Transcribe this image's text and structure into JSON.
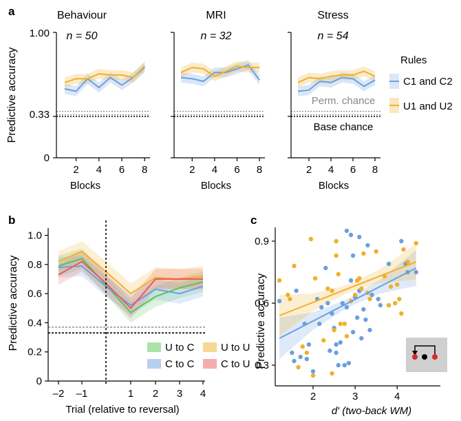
{
  "panel_a": {
    "letter": "a",
    "ylabel": "Predictive accuracy",
    "xlabel": "Blocks",
    "yticks": [
      "1.00",
      "0.33",
      "0"
    ],
    "xticks": [
      "2",
      "4",
      "6",
      "8"
    ],
    "perm_chance_label": "Perm. chance",
    "base_chance_label": "Base chance",
    "legend_title": "Rules",
    "legend_c": "C1 and C2",
    "legend_u": "U1 and U2",
    "subplots": [
      {
        "title": "Behaviour",
        "n": "n = 50"
      },
      {
        "title": "MRI",
        "n": "n = 32"
      },
      {
        "title": "Stress",
        "n": "n = 54"
      }
    ]
  },
  "panel_b": {
    "letter": "b",
    "ylabel": "Predictive accuracy",
    "xlabel": "Trial (relative to reversal)",
    "yticks": [
      "1.0",
      "0.8",
      "0.6",
      "0.4",
      "0.2",
      "0"
    ],
    "xticks": [
      "–2",
      "–1",
      "1",
      "2",
      "3",
      "4"
    ],
    "legend": [
      "U to C",
      "U to U",
      "C to C",
      "C to U"
    ]
  },
  "panel_c": {
    "letter": "c",
    "ylabel": "Predictive accuracy",
    "xlabel": "d′ (two-back WM)",
    "yticks": [
      "0.9",
      "0.6",
      "0.3"
    ],
    "xticks": [
      "2",
      "3",
      "4"
    ]
  },
  "colors": {
    "blue": "#6b9fe0",
    "orange": "#f0b02a",
    "green": "#59c451",
    "red": "#ec5a5a"
  },
  "chart_data": [
    {
      "type": "line",
      "subplot": "Behaviour",
      "x": [
        1,
        2,
        3,
        4,
        5,
        6,
        7,
        8
      ],
      "ylim": [
        0,
        1.0
      ],
      "series": [
        {
          "name": "C1 and C2",
          "values": [
            0.55,
            0.53,
            0.63,
            0.56,
            0.64,
            0.58,
            0.64,
            0.72
          ]
        },
        {
          "name": "U1 and U2",
          "values": [
            0.6,
            0.63,
            0.63,
            0.67,
            0.66,
            0.66,
            0.64,
            0.73
          ]
        }
      ],
      "reference_lines": {
        "Perm. chance": 0.37,
        "Base chance": 0.33
      }
    },
    {
      "type": "line",
      "subplot": "MRI",
      "x": [
        1,
        2,
        3,
        4,
        5,
        6,
        7,
        8
      ],
      "ylim": [
        0,
        1.0
      ],
      "series": [
        {
          "name": "C1 and C2",
          "values": [
            0.64,
            0.63,
            0.61,
            0.68,
            0.68,
            0.71,
            0.74,
            0.62
          ]
        },
        {
          "name": "U1 and U2",
          "values": [
            0.68,
            0.72,
            0.71,
            0.65,
            0.69,
            0.73,
            0.72,
            0.72
          ]
        }
      ],
      "reference_lines": {
        "Perm. chance": 0.37,
        "Base chance": 0.33
      }
    },
    {
      "type": "line",
      "subplot": "Stress",
      "x": [
        1,
        2,
        3,
        4,
        5,
        6,
        7,
        8
      ],
      "ylim": [
        0,
        1.0
      ],
      "series": [
        {
          "name": "C1 and C2",
          "values": [
            0.53,
            0.54,
            0.61,
            0.6,
            0.64,
            0.63,
            0.57,
            0.62
          ]
        },
        {
          "name": "U1 and U2",
          "values": [
            0.6,
            0.64,
            0.63,
            0.65,
            0.66,
            0.66,
            0.69,
            0.65
          ]
        }
      ],
      "reference_lines": {
        "Perm. chance": 0.37,
        "Base chance": 0.33
      }
    },
    {
      "type": "line",
      "panel": "b",
      "x": [
        -2,
        -1,
        0,
        1,
        2,
        3,
        4
      ],
      "ylim": [
        0,
        1.05
      ],
      "series": [
        {
          "name": "U to C",
          "values": [
            0.79,
            0.84,
            0.66,
            0.47,
            0.58,
            0.64,
            0.68
          ]
        },
        {
          "name": "U to U",
          "values": [
            0.82,
            0.89,
            0.75,
            0.6,
            0.71,
            0.7,
            0.72
          ]
        },
        {
          "name": "C to C",
          "values": [
            0.78,
            0.79,
            0.65,
            0.52,
            0.63,
            0.6,
            0.65
          ]
        },
        {
          "name": "C to U",
          "values": [
            0.73,
            0.82,
            0.67,
            0.5,
            0.7,
            0.7,
            0.7
          ]
        }
      ],
      "reference_lines": [
        0.37,
        0.33
      ],
      "reversal_x": 0
    },
    {
      "type": "scatter",
      "panel": "c",
      "xlim": [
        1.1,
        4.6
      ],
      "ylim": [
        0.2,
        1.0
      ],
      "series": [
        {
          "name": "blue",
          "points": [
            [
              1.2,
              0.61
            ],
            [
              1.5,
              0.36
            ],
            [
              1.55,
              0.32
            ],
            [
              1.6,
              0.66
            ],
            [
              1.7,
              0.34
            ],
            [
              1.8,
              0.5
            ],
            [
              1.85,
              0.33
            ],
            [
              1.9,
              0.4
            ],
            [
              2.0,
              0.27
            ],
            [
              2.1,
              0.62
            ],
            [
              2.15,
              0.5
            ],
            [
              2.2,
              0.58
            ],
            [
              2.3,
              0.77
            ],
            [
              2.35,
              0.6
            ],
            [
              2.4,
              0.37
            ],
            [
              2.45,
              0.55
            ],
            [
              2.5,
              0.48
            ],
            [
              2.55,
              0.36
            ],
            [
              2.55,
              0.4
            ],
            [
              2.6,
              0.3
            ],
            [
              2.65,
              0.41
            ],
            [
              2.7,
              0.6
            ],
            [
              2.75,
              0.3
            ],
            [
              2.8,
              0.95
            ],
            [
              2.8,
              0.58
            ],
            [
              2.85,
              0.31
            ],
            [
              2.9,
              0.93
            ],
            [
              2.9,
              0.71
            ],
            [
              2.95,
              0.83
            ],
            [
              2.95,
              0.46
            ],
            [
              3.0,
              0.63
            ],
            [
              3.05,
              0.53
            ],
            [
              3.1,
              0.92
            ],
            [
              3.1,
              0.66
            ],
            [
              3.15,
              0.43
            ],
            [
              3.2,
              0.57
            ],
            [
              3.25,
              0.52
            ],
            [
              3.3,
              0.88
            ],
            [
              3.35,
              0.47
            ],
            [
              3.4,
              0.64
            ],
            [
              3.55,
              0.62
            ],
            [
              3.6,
              0.59
            ],
            [
              3.8,
              0.79
            ],
            [
              4.1,
              0.9
            ],
            [
              4.2,
              0.79
            ],
            [
              4.25,
              0.75
            ],
            [
              4.45,
              0.75
            ]
          ]
        },
        {
          "name": "orange",
          "points": [
            [
              1.2,
              0.71
            ],
            [
              1.4,
              0.64
            ],
            [
              1.45,
              0.62
            ],
            [
              1.55,
              0.78
            ],
            [
              1.65,
              0.29
            ],
            [
              1.75,
              0.39
            ],
            [
              1.85,
              0.36
            ],
            [
              1.95,
              0.91
            ],
            [
              2.0,
              0.25
            ],
            [
              2.05,
              0.72
            ],
            [
              2.25,
              0.42
            ],
            [
              2.35,
              0.67
            ],
            [
              2.45,
              0.26
            ],
            [
              2.45,
              0.66
            ],
            [
              2.5,
              0.47
            ],
            [
              2.55,
              0.9
            ],
            [
              2.55,
              0.83
            ],
            [
              2.6,
              0.74
            ],
            [
              2.65,
              0.5
            ],
            [
              2.75,
              0.5
            ],
            [
              2.8,
              0.44
            ],
            [
              2.9,
              0.61
            ],
            [
              3.0,
              0.64
            ],
            [
              3.05,
              0.71
            ],
            [
              3.1,
              0.72
            ],
            [
              3.15,
              0.67
            ],
            [
              3.2,
              0.84
            ],
            [
              3.3,
              0.65
            ],
            [
              3.35,
              0.62
            ],
            [
              3.5,
              0.85
            ],
            [
              3.7,
              0.73
            ],
            [
              3.8,
              0.59
            ],
            [
              3.85,
              0.68
            ],
            [
              3.95,
              0.6
            ],
            [
              4.0,
              0.69
            ],
            [
              4.05,
              0.62
            ],
            [
              4.1,
              0.55
            ],
            [
              4.15,
              0.86
            ],
            [
              4.25,
              0.8
            ],
            [
              4.45,
              0.89
            ]
          ]
        }
      ],
      "fits": [
        {
          "name": "blue",
          "x": [
            1.2,
            4.45
          ],
          "y": [
            0.43,
            0.77
          ]
        },
        {
          "name": "orange",
          "x": [
            1.2,
            4.45
          ],
          "y": [
            0.54,
            0.8
          ]
        }
      ]
    }
  ]
}
